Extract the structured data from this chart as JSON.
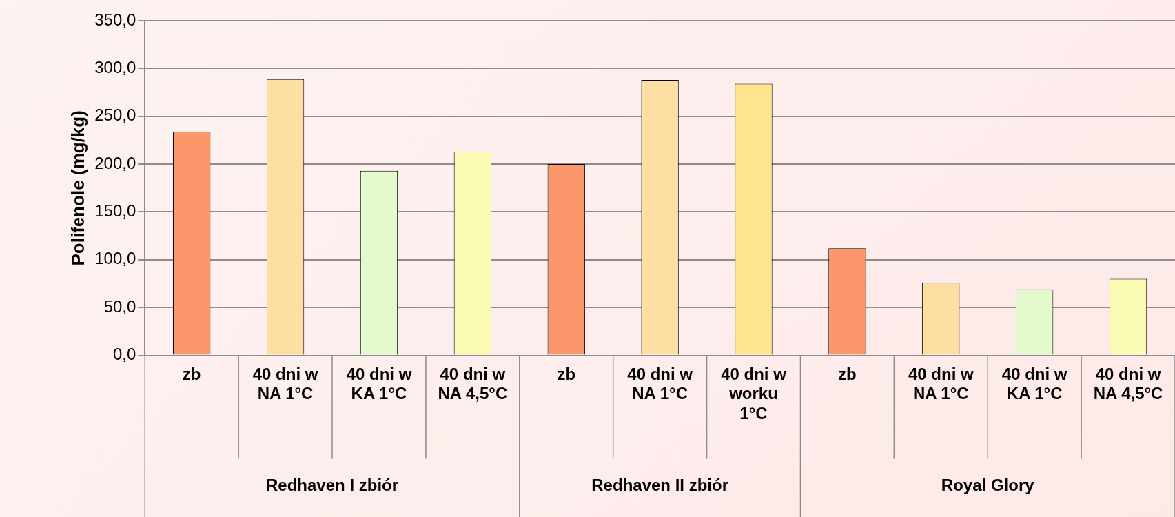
{
  "chart_data": {
    "type": "bar",
    "ylabel": "Polifenole (mg/kg)",
    "categories": [
      "zb",
      "40 dni w NA 1°C",
      "40 dni w KA 1°C",
      "40 dni w NA 4,5°C",
      "zb",
      "40 dni w NA 1°C",
      "40 dni w worku 1°C",
      "zb",
      "40 dni w NA 1°C",
      "40 dni w KA 1°C",
      "40 dni w NA 4,5°C"
    ],
    "values": [
      234,
      289,
      193,
      213,
      200,
      288,
      284,
      112,
      76,
      69,
      80
    ],
    "colors": [
      "#fb976b",
      "#fddfa3",
      "#e3fbcc",
      "#fbfcb3",
      "#fb976b",
      "#fddfa3",
      "#fee48c",
      "#fb976b",
      "#fddfa3",
      "#e3fbcc",
      "#fbfcb3"
    ],
    "ylim": [
      0,
      350
    ],
    "yticks": [
      {
        "value": 0,
        "label": "0,0"
      },
      {
        "value": 50,
        "label": "50,0"
      },
      {
        "value": 100,
        "label": "100,0"
      },
      {
        "value": 150,
        "label": "150,0"
      },
      {
        "value": 200,
        "label": "200,0"
      },
      {
        "value": 250,
        "label": "250,0"
      },
      {
        "value": 300,
        "label": "300,0"
      },
      {
        "value": 350,
        "label": "350,0"
      }
    ],
    "grid": "y",
    "legend": false,
    "annotations": [
      "Redhaven I zbiór",
      "Redhaven II zbiór",
      "Royal Glory"
    ]
  }
}
